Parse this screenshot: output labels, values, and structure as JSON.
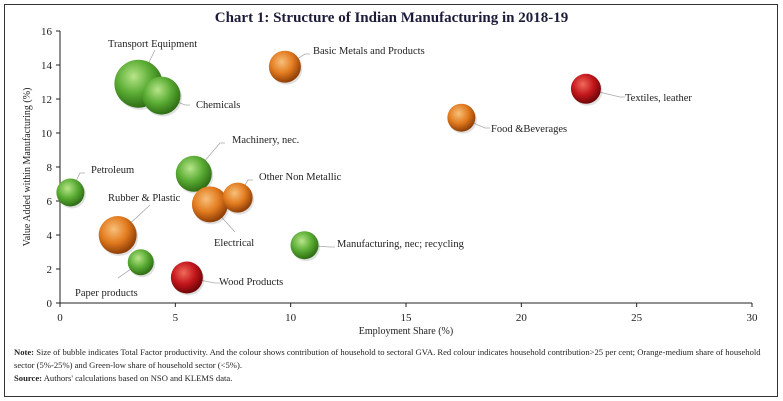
{
  "chart_data": {
    "type": "scatter",
    "title": "Chart 1: Structure of Indian Manufacturing in 2018-19",
    "xlabel": "Employment Share (%)",
    "ylabel": "Value Added within Manufacturing (%)",
    "xlim": [
      0,
      30
    ],
    "ylim": [
      0,
      16
    ],
    "xticks": [
      "0",
      "5",
      "10",
      "15",
      "20",
      "25",
      "30"
    ],
    "yticks": [
      "0",
      "2",
      "4",
      "6",
      "8",
      "10",
      "12",
      "14",
      "16"
    ],
    "grid": false,
    "colors": {
      "red": "#c3161c",
      "orange": "#e27b1f",
      "green": "#5aac34"
    },
    "points": [
      {
        "label": "Transport Equipment",
        "x": 3.4,
        "y": 12.9,
        "size": 24,
        "color": "green"
      },
      {
        "label": "Chemicals",
        "x": 4.4,
        "y": 12.2,
        "size": 19,
        "color": "green"
      },
      {
        "label": "Basic Metals and Products",
        "x": 9.75,
        "y": 13.9,
        "size": 16,
        "color": "orange"
      },
      {
        "label": "Textiles, leather",
        "x": 22.8,
        "y": 12.6,
        "size": 15,
        "color": "red"
      },
      {
        "label": "Food &Beverages",
        "x": 17.4,
        "y": 10.9,
        "size": 14,
        "color": "orange"
      },
      {
        "label": "Machinery, nec.",
        "x": 5.8,
        "y": 7.6,
        "size": 18,
        "color": "green"
      },
      {
        "label": "Petroleum",
        "x": 0.45,
        "y": 6.5,
        "size": 14,
        "color": "green"
      },
      {
        "label": "Other Non Metallic",
        "x": 7.7,
        "y": 6.2,
        "size": 15,
        "color": "orange"
      },
      {
        "label": "Electrical",
        "x": 6.5,
        "y": 5.8,
        "size": 18,
        "color": "orange"
      },
      {
        "label": "Rubber & Plastic",
        "x": 2.5,
        "y": 4.0,
        "size": 19,
        "color": "orange"
      },
      {
        "label": "Manufacturing, nec; recycling",
        "x": 10.6,
        "y": 3.4,
        "size": 14,
        "color": "green"
      },
      {
        "label": "Paper products",
        "x": 3.5,
        "y": 2.4,
        "size": 13,
        "color": "green"
      },
      {
        "label": "Wood Products",
        "x": 5.5,
        "y": 1.5,
        "size": 16,
        "color": "red"
      }
    ]
  },
  "note": {
    "note_label": "Note:",
    "note_text": " Size of bubble indicates Total Factor productivity. And the colour shows contribution of household to sectoral GVA. Red colour indicates household contribution>25 per cent; Orange-medium share of household sector (5%-25%) and Green-low share of household sector (<5%).",
    "source_label": "Source:",
    "source_text": " Authors' calculations based on NSO and KLEMS data."
  }
}
